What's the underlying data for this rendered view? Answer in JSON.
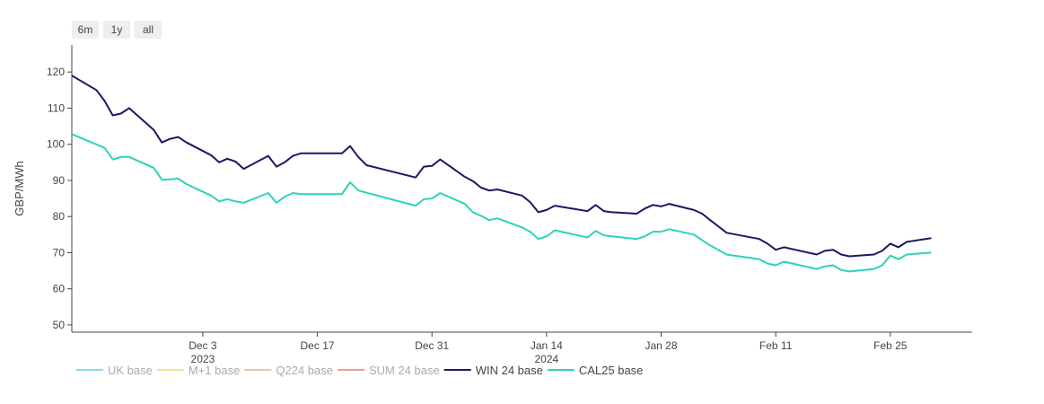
{
  "range_buttons": [
    "6m",
    "1y",
    "all"
  ],
  "chart_data": {
    "type": "line",
    "title": "",
    "xlabel": "",
    "ylabel": "GBP/MWh",
    "ylim": [
      48,
      127.5
    ],
    "xlim": [
      "2023-11-17",
      "2024-03-06"
    ],
    "y_ticks": [
      50,
      60,
      70,
      80,
      90,
      100,
      110,
      120
    ],
    "x_ticks": [
      {
        "date": "2023-12-03",
        "label": "Dec 3",
        "sublabel": "2023"
      },
      {
        "date": "2023-12-17",
        "label": "Dec 17",
        "sublabel": ""
      },
      {
        "date": "2023-12-31",
        "label": "Dec 31",
        "sublabel": ""
      },
      {
        "date": "2024-01-14",
        "label": "Jan 14",
        "sublabel": "2024"
      },
      {
        "date": "2024-01-28",
        "label": "Jan 28",
        "sublabel": ""
      },
      {
        "date": "2024-02-11",
        "label": "Feb 11",
        "sublabel": ""
      },
      {
        "date": "2024-02-25",
        "label": "Feb 25",
        "sublabel": ""
      }
    ],
    "grid": false,
    "legend_position": "bottom",
    "legend": [
      {
        "name": "UK base",
        "color": "#7fe0ea",
        "active": false
      },
      {
        "name": "M+1 base",
        "color": "#f5e38a",
        "active": false
      },
      {
        "name": "Q224 base",
        "color": "#f3c29c",
        "active": false
      },
      {
        "name": "SUM 24 base",
        "color": "#ee9d9d",
        "active": false
      },
      {
        "name": "WIN 24 base",
        "color": "#1f1762",
        "active": true
      },
      {
        "name": "CAL25 base",
        "color": "#2ed3b5",
        "active": true
      }
    ],
    "series": [
      {
        "name": "WIN 24 base",
        "color": "#1f1762",
        "points": [
          [
            "2023-11-17",
            119
          ],
          [
            "2023-11-20",
            115
          ],
          [
            "2023-11-21",
            112
          ],
          [
            "2023-11-22",
            108
          ],
          [
            "2023-11-23",
            108.5
          ],
          [
            "2023-11-24",
            110
          ],
          [
            "2023-11-27",
            104
          ],
          [
            "2023-11-28",
            100.5
          ],
          [
            "2023-11-29",
            101.5
          ],
          [
            "2023-11-30",
            102
          ],
          [
            "2023-12-01",
            100.5
          ],
          [
            "2023-12-04",
            97
          ],
          [
            "2023-12-05",
            95
          ],
          [
            "2023-12-06",
            96
          ],
          [
            "2023-12-07",
            95.2
          ],
          [
            "2023-12-08",
            93.2
          ],
          [
            "2023-12-11",
            96.8
          ],
          [
            "2023-12-12",
            93.8
          ],
          [
            "2023-12-13",
            95
          ],
          [
            "2023-12-14",
            96.8
          ],
          [
            "2023-12-15",
            97.5
          ],
          [
            "2023-12-18",
            97.5
          ],
          [
            "2023-12-19",
            97.5
          ],
          [
            "2023-12-20",
            97.5
          ],
          [
            "2023-12-21",
            99.5
          ],
          [
            "2023-12-22",
            96.5
          ],
          [
            "2023-12-23",
            94.2
          ],
          [
            "2023-12-29",
            90.8
          ],
          [
            "2023-12-30",
            93.8
          ],
          [
            "2023-12-31",
            94
          ],
          [
            "2024-01-01",
            95.8
          ],
          [
            "2024-01-04",
            91
          ],
          [
            "2024-01-05",
            89.8
          ],
          [
            "2024-01-06",
            88
          ],
          [
            "2024-01-07",
            87.2
          ],
          [
            "2024-01-08",
            87.5
          ],
          [
            "2024-01-11",
            85.8
          ],
          [
            "2024-01-12",
            84
          ],
          [
            "2024-01-13",
            81.2
          ],
          [
            "2024-01-14",
            81.8
          ],
          [
            "2024-01-15",
            83
          ],
          [
            "2024-01-19",
            81.5
          ],
          [
            "2024-01-20",
            83.2
          ],
          [
            "2024-01-21",
            81.5
          ],
          [
            "2024-01-22",
            81.2
          ],
          [
            "2024-01-25",
            80.8
          ],
          [
            "2024-01-26",
            82.2
          ],
          [
            "2024-01-27",
            83.2
          ],
          [
            "2024-01-28",
            82.8
          ],
          [
            "2024-01-29",
            83.5
          ],
          [
            "2024-02-01",
            81.8
          ],
          [
            "2024-02-02",
            80.8
          ],
          [
            "2024-02-03",
            79
          ],
          [
            "2024-02-05",
            75.5
          ],
          [
            "2024-02-09",
            73.8
          ],
          [
            "2024-02-10",
            72.5
          ],
          [
            "2024-02-11",
            70.8
          ],
          [
            "2024-02-12",
            71.5
          ],
          [
            "2024-02-16",
            69.5
          ],
          [
            "2024-02-17",
            70.5
          ],
          [
            "2024-02-18",
            70.8
          ],
          [
            "2024-02-19",
            69.5
          ],
          [
            "2024-02-20",
            69
          ],
          [
            "2024-02-23",
            69.5
          ],
          [
            "2024-02-24",
            70.5
          ],
          [
            "2024-02-25",
            72.5
          ],
          [
            "2024-02-26",
            71.5
          ],
          [
            "2024-02-27",
            73
          ],
          [
            "2024-03-01",
            74
          ]
        ]
      },
      {
        "name": "CAL25 base",
        "color": "#2ed3b5",
        "points": [
          [
            "2023-11-17",
            102.8
          ],
          [
            "2023-11-21",
            99
          ],
          [
            "2023-11-22",
            95.8
          ],
          [
            "2023-11-23",
            96.5
          ],
          [
            "2023-11-24",
            96.5
          ],
          [
            "2023-11-27",
            93.5
          ],
          [
            "2023-11-28",
            90.2
          ],
          [
            "2023-11-29",
            90.3
          ],
          [
            "2023-11-30",
            90.5
          ],
          [
            "2023-12-01",
            89
          ],
          [
            "2023-12-04",
            85.8
          ],
          [
            "2023-12-05",
            84.2
          ],
          [
            "2023-12-06",
            84.8
          ],
          [
            "2023-12-07",
            84.2
          ],
          [
            "2023-12-08",
            83.8
          ],
          [
            "2023-12-11",
            86.5
          ],
          [
            "2023-12-12",
            83.8
          ],
          [
            "2023-12-13",
            85.5
          ],
          [
            "2023-12-14",
            86.5
          ],
          [
            "2023-12-15",
            86.2
          ],
          [
            "2023-12-18",
            86.2
          ],
          [
            "2023-12-19",
            86.2
          ],
          [
            "2023-12-20",
            86.2
          ],
          [
            "2023-12-21",
            89.5
          ],
          [
            "2023-12-22",
            87.2
          ],
          [
            "2023-12-29",
            83
          ],
          [
            "2023-12-30",
            84.8
          ],
          [
            "2023-12-31",
            85
          ],
          [
            "2024-01-01",
            86.5
          ],
          [
            "2024-01-04",
            83.5
          ],
          [
            "2024-01-05",
            81.2
          ],
          [
            "2024-01-06",
            80.2
          ],
          [
            "2024-01-07",
            79
          ],
          [
            "2024-01-08",
            79.5
          ],
          [
            "2024-01-11",
            77
          ],
          [
            "2024-01-12",
            75.8
          ],
          [
            "2024-01-13",
            73.8
          ],
          [
            "2024-01-14",
            74.5
          ],
          [
            "2024-01-15",
            76.2
          ],
          [
            "2024-01-19",
            74.2
          ],
          [
            "2024-01-20",
            76
          ],
          [
            "2024-01-21",
            74.8
          ],
          [
            "2024-01-22",
            74.5
          ],
          [
            "2024-01-25",
            73.8
          ],
          [
            "2024-01-26",
            74.5
          ],
          [
            "2024-01-27",
            75.8
          ],
          [
            "2024-01-28",
            75.8
          ],
          [
            "2024-01-29",
            76.5
          ],
          [
            "2024-02-01",
            75
          ],
          [
            "2024-02-02",
            73.5
          ],
          [
            "2024-02-03",
            72
          ],
          [
            "2024-02-05",
            69.5
          ],
          [
            "2024-02-09",
            68.2
          ],
          [
            "2024-02-10",
            67
          ],
          [
            "2024-02-11",
            66.5
          ],
          [
            "2024-02-12",
            67.5
          ],
          [
            "2024-02-16",
            65.5
          ],
          [
            "2024-02-17",
            66.2
          ],
          [
            "2024-02-18",
            66.5
          ],
          [
            "2024-02-19",
            65.2
          ],
          [
            "2024-02-20",
            64.8
          ],
          [
            "2024-02-23",
            65.5
          ],
          [
            "2024-02-24",
            66.5
          ],
          [
            "2024-02-25",
            69.2
          ],
          [
            "2024-02-26",
            68.2
          ],
          [
            "2024-02-27",
            69.5
          ],
          [
            "2024-03-01",
            70
          ]
        ]
      }
    ]
  }
}
